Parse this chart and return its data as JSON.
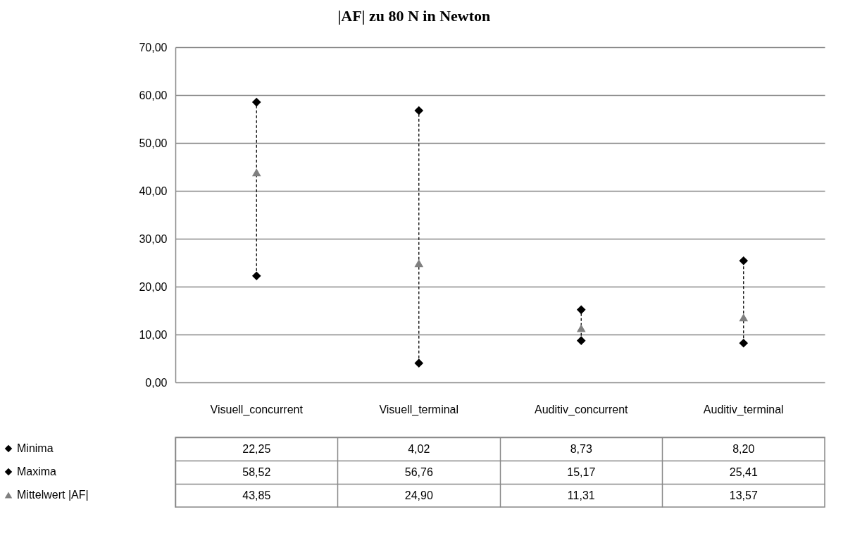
{
  "chart_data": {
    "type": "scatter",
    "title": "|AF| zu 80 N in Newton",
    "categories": [
      "Visuell_concurrent",
      "Visuell_terminal",
      "Auditiv_concurrent",
      "Auditiv_terminal"
    ],
    "series": [
      {
        "name": "Minima",
        "color": "#000000",
        "marker": "diamond",
        "values": [
          22.25,
          4.02,
          8.73,
          8.2
        ],
        "value_labels": [
          "22,25",
          "4,02",
          "8,73",
          "8,20"
        ]
      },
      {
        "name": "Maxima",
        "color": "#000000",
        "marker": "diamond",
        "values": [
          58.52,
          56.76,
          15.17,
          25.41
        ],
        "value_labels": [
          "58,52",
          "56,76",
          "15,17",
          "25,41"
        ]
      },
      {
        "name": "Mittelwert |AF|",
        "color": "#808080",
        "marker": "triangle",
        "values": [
          43.85,
          24.9,
          11.31,
          13.57
        ],
        "value_labels": [
          "43,85",
          "24,90",
          "11,31",
          "13,57"
        ]
      }
    ],
    "ylim": [
      0,
      70
    ],
    "yticks": [
      {
        "value": 0,
        "label": "0,00"
      },
      {
        "value": 10,
        "label": "10,00"
      },
      {
        "value": 20,
        "label": "20,00"
      },
      {
        "value": 30,
        "label": "30,00"
      },
      {
        "value": 40,
        "label": "40,00"
      },
      {
        "value": 50,
        "label": "50,00"
      },
      {
        "value": 60,
        "label": "60,00"
      },
      {
        "value": 70,
        "label": "70,00"
      }
    ],
    "grid": "y",
    "line_style": "dashed",
    "legend": "bottom left"
  }
}
